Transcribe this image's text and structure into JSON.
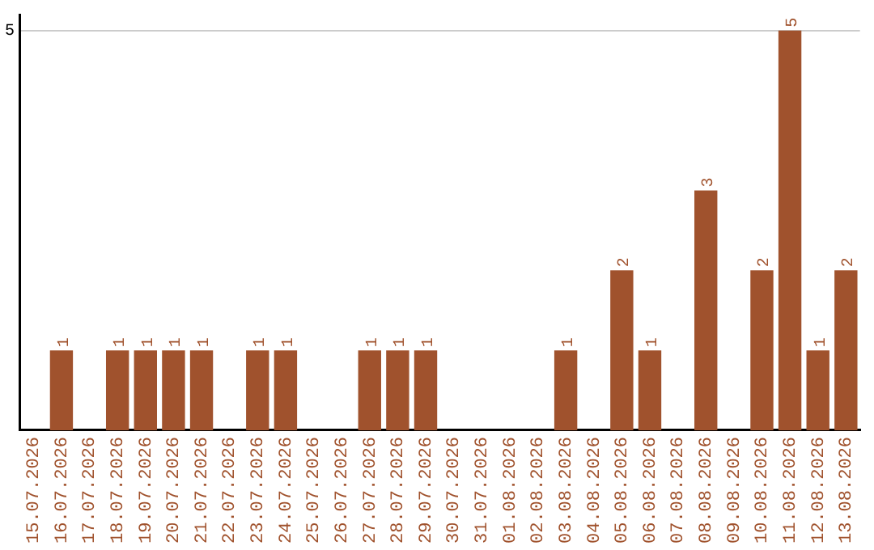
{
  "chart_data": {
    "type": "bar",
    "categories": [
      "15.07.2026",
      "16.07.2026",
      "17.07.2026",
      "18.07.2026",
      "19.07.2026",
      "20.07.2026",
      "21.07.2026",
      "22.07.2026",
      "23.07.2026",
      "24.07.2026",
      "25.07.2026",
      "26.07.2026",
      "27.07.2026",
      "28.07.2026",
      "29.07.2026",
      "30.07.2026",
      "31.07.2026",
      "01.08.2026",
      "02.08.2026",
      "03.08.2026",
      "04.08.2026",
      "05.08.2026",
      "06.08.2026",
      "07.08.2026",
      "08.08.2026",
      "09.08.2026",
      "10.08.2026",
      "11.08.2026",
      "12.08.2026",
      "13.08.2026"
    ],
    "values": [
      0,
      1,
      0,
      1,
      1,
      1,
      1,
      0,
      1,
      1,
      0,
      0,
      1,
      1,
      1,
      0,
      0,
      0,
      0,
      1,
      0,
      2,
      1,
      0,
      3,
      0,
      2,
      5,
      1,
      2
    ],
    "value_labels": [
      null,
      "1",
      null,
      "1",
      "1",
      "1",
      "1",
      null,
      "1",
      "1",
      null,
      null,
      "1",
      "1",
      "1",
      null,
      null,
      null,
      null,
      "1",
      null,
      "2",
      "1",
      null,
      "3",
      null,
      "2",
      "5",
      "1",
      "2"
    ],
    "color": "#a0522d",
    "ylim": [
      0,
      5.2
    ],
    "yticks": [
      5
    ],
    "grid": "y",
    "legend": false
  }
}
